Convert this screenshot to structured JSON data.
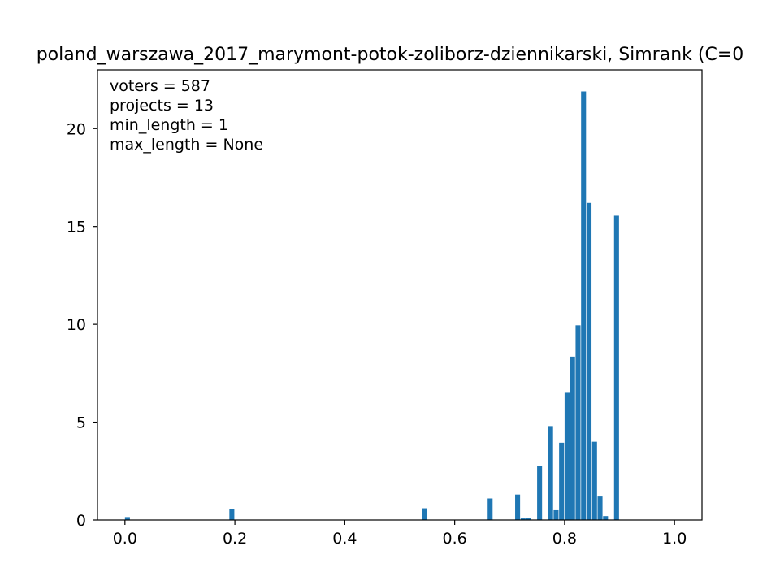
{
  "chart_data": {
    "type": "bar",
    "title": "poland_warszawa_2017_marymont-potok-zoliborz-dziennikarski, Simrank (C=0",
    "xlabel": "",
    "ylabel": "",
    "xlim": [
      -0.05,
      1.05
    ],
    "ylim": [
      0,
      23
    ],
    "xticks": [
      "0.0",
      "0.2",
      "0.4",
      "0.6",
      "0.8",
      "1.0"
    ],
    "yticks": [
      "0",
      "5",
      "10",
      "15",
      "20"
    ],
    "bar_color": "#1f77b4",
    "bin_width": 0.01,
    "annotations": [
      "voters = 587",
      "projects = 13",
      "min_length = 1",
      "max_length = None"
    ],
    "bins": [
      {
        "x": 0.0,
        "y": 0.15
      },
      {
        "x": 0.19,
        "y": 0.55
      },
      {
        "x": 0.54,
        "y": 0.6
      },
      {
        "x": 0.66,
        "y": 1.1
      },
      {
        "x": 0.71,
        "y": 1.3
      },
      {
        "x": 0.72,
        "y": 0.08
      },
      {
        "x": 0.73,
        "y": 0.1
      },
      {
        "x": 0.75,
        "y": 2.75
      },
      {
        "x": 0.77,
        "y": 4.8
      },
      {
        "x": 0.78,
        "y": 0.5
      },
      {
        "x": 0.79,
        "y": 3.95
      },
      {
        "x": 0.8,
        "y": 6.5
      },
      {
        "x": 0.81,
        "y": 8.35
      },
      {
        "x": 0.82,
        "y": 9.95
      },
      {
        "x": 0.83,
        "y": 21.9
      },
      {
        "x": 0.84,
        "y": 16.2
      },
      {
        "x": 0.85,
        "y": 4.0
      },
      {
        "x": 0.86,
        "y": 1.2
      },
      {
        "x": 0.87,
        "y": 0.2
      },
      {
        "x": 0.89,
        "y": 15.55
      }
    ]
  }
}
